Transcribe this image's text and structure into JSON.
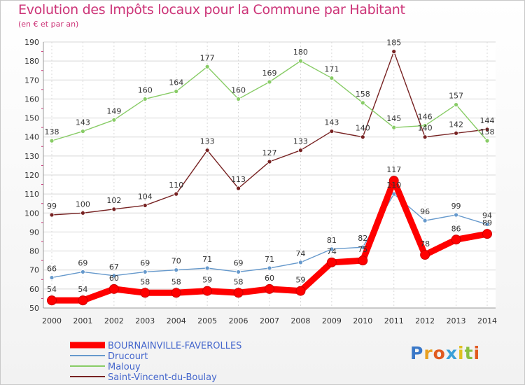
{
  "chart_data": {
    "type": "line",
    "title": "Evolution des Impôts locaux pour la Commune par Habitant",
    "subtitle": "(en € et par an)",
    "x": [
      2000,
      2001,
      2002,
      2003,
      2004,
      2005,
      2006,
      2007,
      2008,
      2009,
      2010,
      2011,
      2012,
      2013,
      2014
    ],
    "ylim": [
      50,
      190
    ],
    "yticks": [
      50,
      60,
      70,
      80,
      90,
      100,
      110,
      120,
      130,
      140,
      150,
      160,
      170,
      180,
      190
    ],
    "grid": true,
    "legend_position": "bottom-left",
    "series": [
      {
        "name": "BOURNAINVILLE-FAVEROLLES",
        "color": "#ff0000",
        "values": [
          54,
          54,
          60,
          58,
          58,
          59,
          58,
          60,
          59,
          74,
          75,
          117,
          78,
          86,
          89
        ],
        "labels": [
          "54",
          "54",
          "60",
          "58",
          "58",
          "59",
          "58",
          "60",
          "59",
          "74",
          "75",
          "117",
          "78",
          "86",
          "89"
        ]
      },
      {
        "name": "Drucourt",
        "color": "#6699cc",
        "values": [
          66,
          69,
          67,
          69,
          70,
          71,
          69,
          71,
          74,
          81,
          82,
          110,
          96,
          99,
          94
        ],
        "labels": [
          "66",
          "69",
          "67",
          "69",
          "70",
          "71",
          "69",
          "71",
          "74",
          "81",
          "82",
          "110",
          "96",
          "99",
          "94"
        ]
      },
      {
        "name": "Malouy",
        "color": "#88cc66",
        "values": [
          138,
          143,
          149,
          160,
          164,
          177,
          160,
          169,
          180,
          171,
          158,
          145,
          146,
          157,
          138
        ],
        "labels": [
          "138",
          "143",
          "149",
          "160",
          "164",
          "177",
          "160",
          "169",
          "180",
          "171",
          "158",
          "145",
          "146",
          "157",
          "138"
        ]
      },
      {
        "name": "Saint-Vincent-du-Boulay",
        "color": "#772222",
        "values": [
          99,
          100,
          102,
          104,
          110,
          133,
          113,
          127,
          133,
          143,
          140,
          185,
          140,
          142,
          144
        ],
        "labels": [
          "99",
          "100",
          "102",
          "104",
          "110",
          "133",
          "113",
          "127",
          "133",
          "143",
          "140",
          "185",
          "140",
          "142",
          "144"
        ]
      }
    ]
  },
  "logo": {
    "text": "Proxiti"
  },
  "colors": {
    "title": "#cc3377",
    "grid": "#d8d8d8",
    "axis": "#999999"
  }
}
